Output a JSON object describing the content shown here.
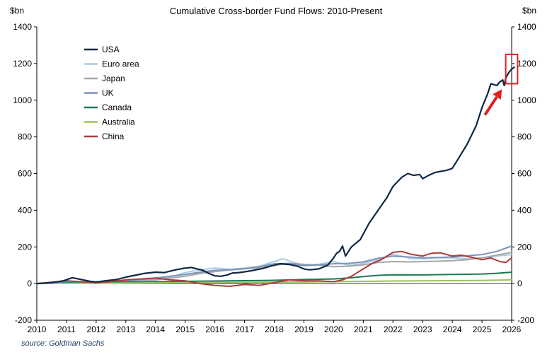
{
  "chart_data": {
    "type": "line",
    "title": "Cumulative Cross-border Fund Flows: 2010-Present",
    "ylabel_left": "$bn",
    "ylabel_right": "$bn",
    "xlabel": "",
    "x_ticks": [
      "2010",
      "2011",
      "2012",
      "2013",
      "2014",
      "2015",
      "2016",
      "2017",
      "2018",
      "2019",
      "2020",
      "2021",
      "2022",
      "2023",
      "2024",
      "2025",
      "2026"
    ],
    "y_ticks": [
      "1400",
      "1200",
      "1000",
      "800",
      "600",
      "400",
      "200",
      "0",
      "-200"
    ],
    "xlim": [
      2010,
      2026
    ],
    "ylim": [
      -200,
      1400
    ],
    "grid": false,
    "legend_position": "top-left",
    "series": [
      {
        "name": "USA",
        "color": "#0f2844",
        "points": [
          [
            2010.0,
            0
          ],
          [
            2010.5,
            5
          ],
          [
            2010.9,
            15
          ],
          [
            2011.2,
            32
          ],
          [
            2011.5,
            22
          ],
          [
            2011.8,
            12
          ],
          [
            2012.0,
            8
          ],
          [
            2012.3,
            15
          ],
          [
            2012.7,
            22
          ],
          [
            2013.0,
            35
          ],
          [
            2013.3,
            45
          ],
          [
            2013.6,
            55
          ],
          [
            2014.0,
            62
          ],
          [
            2014.3,
            60
          ],
          [
            2014.6,
            72
          ],
          [
            2014.9,
            82
          ],
          [
            2015.2,
            88
          ],
          [
            2015.4,
            80
          ],
          [
            2015.6,
            72
          ],
          [
            2015.8,
            55
          ],
          [
            2016.0,
            42
          ],
          [
            2016.2,
            40
          ],
          [
            2016.4,
            46
          ],
          [
            2016.6,
            58
          ],
          [
            2016.8,
            60
          ],
          [
            2017.0,
            64
          ],
          [
            2017.3,
            72
          ],
          [
            2017.6,
            82
          ],
          [
            2017.9,
            96
          ],
          [
            2018.2,
            108
          ],
          [
            2018.5,
            104
          ],
          [
            2018.8,
            94
          ],
          [
            2019.0,
            80
          ],
          [
            2019.2,
            75
          ],
          [
            2019.5,
            80
          ],
          [
            2019.8,
            100
          ],
          [
            2020.0,
            140
          ],
          [
            2020.1,
            165
          ],
          [
            2020.2,
            175
          ],
          [
            2020.3,
            205
          ],
          [
            2020.4,
            150
          ],
          [
            2020.6,
            200
          ],
          [
            2020.9,
            240
          ],
          [
            2021.2,
            330
          ],
          [
            2021.5,
            400
          ],
          [
            2021.8,
            470
          ],
          [
            2022.0,
            530
          ],
          [
            2022.3,
            580
          ],
          [
            2022.5,
            600
          ],
          [
            2022.7,
            590
          ],
          [
            2022.9,
            595
          ],
          [
            2023.0,
            572
          ],
          [
            2023.2,
            590
          ],
          [
            2023.4,
            605
          ],
          [
            2023.6,
            612
          ],
          [
            2023.8,
            617
          ],
          [
            2024.0,
            628
          ],
          [
            2024.2,
            680
          ],
          [
            2024.5,
            760
          ],
          [
            2024.8,
            860
          ],
          [
            2025.0,
            960
          ],
          [
            2025.2,
            1040
          ],
          [
            2025.3,
            1090
          ],
          [
            2025.5,
            1080
          ],
          [
            2025.6,
            1100
          ],
          [
            2025.7,
            1110
          ],
          [
            2025.75,
            1080
          ],
          [
            2025.8,
            1120
          ],
          [
            2025.9,
            1150
          ],
          [
            2026.0,
            1170
          ],
          [
            2026.05,
            1175
          ],
          [
            2026.1,
            1182
          ]
        ]
      },
      {
        "name": "Euro area",
        "color": "#a9cde6",
        "points": [
          [
            2010.0,
            0
          ],
          [
            2011.0,
            10
          ],
          [
            2012.0,
            5
          ],
          [
            2013.0,
            15
          ],
          [
            2014.0,
            25
          ],
          [
            2014.5,
            35
          ],
          [
            2015.0,
            60
          ],
          [
            2015.5,
            75
          ],
          [
            2016.0,
            85
          ],
          [
            2016.5,
            78
          ],
          [
            2017.0,
            85
          ],
          [
            2017.5,
            95
          ],
          [
            2018.0,
            120
          ],
          [
            2018.3,
            135
          ],
          [
            2018.6,
            118
          ],
          [
            2019.0,
            100
          ],
          [
            2019.5,
            105
          ],
          [
            2020.0,
            120
          ],
          [
            2020.5,
            100
          ],
          [
            2021.0,
            110
          ],
          [
            2021.5,
            130
          ],
          [
            2022.0,
            160
          ],
          [
            2022.3,
            150
          ],
          [
            2022.6,
            135
          ],
          [
            2023.0,
            135
          ],
          [
            2023.5,
            140
          ],
          [
            2024.0,
            140
          ],
          [
            2024.5,
            135
          ],
          [
            2025.0,
            140
          ],
          [
            2025.5,
            150
          ],
          [
            2026.0,
            158
          ]
        ]
      },
      {
        "name": "Japan",
        "color": "#a6a6a6",
        "points": [
          [
            2010.0,
            0
          ],
          [
            2011.0,
            5
          ],
          [
            2012.0,
            10
          ],
          [
            2013.0,
            15
          ],
          [
            2014.0,
            20
          ],
          [
            2015.0,
            40
          ],
          [
            2015.5,
            55
          ],
          [
            2016.0,
            65
          ],
          [
            2016.5,
            75
          ],
          [
            2017.0,
            82
          ],
          [
            2017.5,
            85
          ],
          [
            2018.0,
            100
          ],
          [
            2018.5,
            110
          ],
          [
            2019.0,
            105
          ],
          [
            2019.5,
            102
          ],
          [
            2020.0,
            92
          ],
          [
            2020.5,
            95
          ],
          [
            2021.0,
            102
          ],
          [
            2021.5,
            115
          ],
          [
            2022.0,
            120
          ],
          [
            2022.5,
            118
          ],
          [
            2023.0,
            120
          ],
          [
            2023.5,
            122
          ],
          [
            2024.0,
            125
          ],
          [
            2024.5,
            130
          ],
          [
            2025.0,
            140
          ],
          [
            2025.5,
            155
          ],
          [
            2026.0,
            170
          ]
        ]
      },
      {
        "name": "UK",
        "color": "#7b94b8",
        "points": [
          [
            2010.0,
            0
          ],
          [
            2011.0,
            10
          ],
          [
            2012.0,
            5
          ],
          [
            2013.0,
            15
          ],
          [
            2014.0,
            30
          ],
          [
            2015.0,
            50
          ],
          [
            2015.5,
            62
          ],
          [
            2016.0,
            72
          ],
          [
            2016.5,
            75
          ],
          [
            2017.0,
            80
          ],
          [
            2017.5,
            92
          ],
          [
            2018.0,
            108
          ],
          [
            2018.5,
            110
          ],
          [
            2019.0,
            98
          ],
          [
            2019.5,
            102
          ],
          [
            2020.0,
            108
          ],
          [
            2020.5,
            110
          ],
          [
            2021.0,
            118
          ],
          [
            2021.5,
            138
          ],
          [
            2022.0,
            150
          ],
          [
            2022.5,
            145
          ],
          [
            2023.0,
            140
          ],
          [
            2023.5,
            142
          ],
          [
            2024.0,
            145
          ],
          [
            2024.5,
            152
          ],
          [
            2025.0,
            158
          ],
          [
            2025.5,
            175
          ],
          [
            2026.0,
            205
          ]
        ]
      },
      {
        "name": "Canada",
        "color": "#1c7a4f",
        "points": [
          [
            2010.0,
            0
          ],
          [
            2011.0,
            3
          ],
          [
            2012.0,
            6
          ],
          [
            2013.0,
            8
          ],
          [
            2014.0,
            10
          ],
          [
            2015.0,
            12
          ],
          [
            2016.0,
            14
          ],
          [
            2017.0,
            16
          ],
          [
            2018.0,
            18
          ],
          [
            2019.0,
            22
          ],
          [
            2020.0,
            25
          ],
          [
            2020.5,
            30
          ],
          [
            2021.0,
            38
          ],
          [
            2021.5,
            45
          ],
          [
            2022.0,
            48
          ],
          [
            2023.0,
            47
          ],
          [
            2024.0,
            50
          ],
          [
            2025.0,
            52
          ],
          [
            2025.5,
            56
          ],
          [
            2026.0,
            62
          ]
        ]
      },
      {
        "name": "Australia",
        "color": "#9dc35c",
        "points": [
          [
            2010.0,
            0
          ],
          [
            2012.0,
            2
          ],
          [
            2014.0,
            4
          ],
          [
            2016.0,
            6
          ],
          [
            2018.0,
            8
          ],
          [
            2020.0,
            10
          ],
          [
            2021.0,
            12
          ],
          [
            2022.0,
            14
          ],
          [
            2023.0,
            15
          ],
          [
            2024.0,
            16
          ],
          [
            2025.0,
            17
          ],
          [
            2026.0,
            20
          ]
        ]
      },
      {
        "name": "China",
        "color": "#b03a3a",
        "points": [
          [
            2010.0,
            0
          ],
          [
            2011.0,
            15
          ],
          [
            2012.0,
            5
          ],
          [
            2012.5,
            10
          ],
          [
            2013.0,
            20
          ],
          [
            2013.5,
            25
          ],
          [
            2014.0,
            30
          ],
          [
            2014.5,
            20
          ],
          [
            2015.0,
            15
          ],
          [
            2015.5,
            0
          ],
          [
            2016.0,
            -10
          ],
          [
            2016.5,
            -15
          ],
          [
            2017.0,
            -5
          ],
          [
            2017.5,
            -10
          ],
          [
            2018.0,
            5
          ],
          [
            2018.5,
            20
          ],
          [
            2019.0,
            15
          ],
          [
            2019.5,
            15
          ],
          [
            2020.0,
            10
          ],
          [
            2020.3,
            20
          ],
          [
            2020.6,
            40
          ],
          [
            2021.0,
            80
          ],
          [
            2021.3,
            110
          ],
          [
            2021.6,
            130
          ],
          [
            2022.0,
            170
          ],
          [
            2022.3,
            175
          ],
          [
            2022.6,
            160
          ],
          [
            2023.0,
            150
          ],
          [
            2023.3,
            165
          ],
          [
            2023.6,
            168
          ],
          [
            2024.0,
            150
          ],
          [
            2024.3,
            155
          ],
          [
            2024.6,
            145
          ],
          [
            2025.0,
            130
          ],
          [
            2025.3,
            140
          ],
          [
            2025.6,
            120
          ],
          [
            2025.8,
            115
          ],
          [
            2026.0,
            140
          ]
        ]
      }
    ],
    "source": "source: Goldman Sachs",
    "annotation": {
      "box_x": [
        2025.8,
        2026.2
      ],
      "box_y": [
        1090,
        1250
      ],
      "arrow_from": [
        2025.1,
        920
      ],
      "arrow_to": [
        2025.67,
        1060
      ],
      "color": "#e02020"
    }
  }
}
